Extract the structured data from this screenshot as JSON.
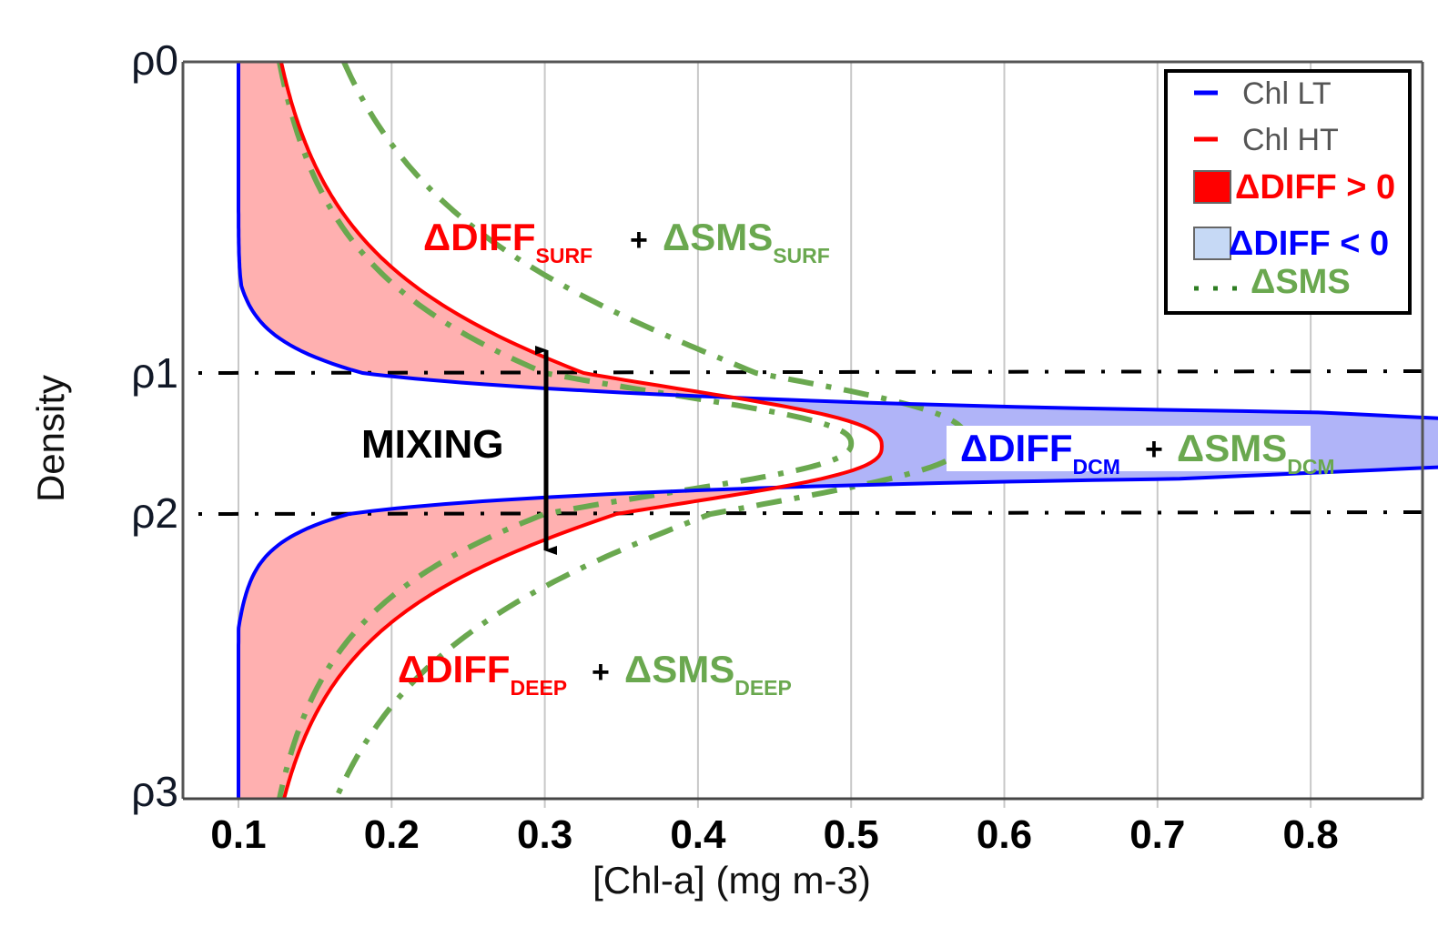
{
  "chart_data": {
    "type": "line",
    "title": "",
    "xlabel": "[Chl-a] (mg m-3)",
    "ylabel": "Density",
    "xlim": [
      0.07,
      0.86
    ],
    "x_ticks": [
      0.1,
      0.2,
      0.3,
      0.4,
      0.5,
      0.6,
      0.7,
      0.8
    ],
    "x_tick_labels": [
      "0.1",
      "0.2",
      "0.3",
      "0.4",
      "0.5",
      "0.6",
      "0.7",
      "0.8"
    ],
    "y_ticks": [
      "ρ0",
      "ρ1",
      "ρ2",
      "ρ3"
    ],
    "y_axis_direction": "downward (ρ0 top, ρ3 bottom)",
    "grid": "vertical lines at x ticks",
    "horizontal_reference_lines": [
      "ρ1",
      "ρ2"
    ],
    "series": [
      {
        "name": "Chl LT",
        "color": "#0000ff",
        "style": "solid",
        "description": "Low-turbulence profile: 0.1 at surface and depth, sharp DCM peak ~0.83 between ρ1 and ρ2",
        "points": [
          {
            "density": "ρ0",
            "chl": 0.1
          },
          {
            "density": 0.5,
            "chl": 0.105
          },
          {
            "density": 0.85,
            "chl": 0.2
          },
          {
            "density": "ρ1",
            "chl": 0.3
          },
          {
            "density": 1.5,
            "chl": 0.83
          },
          {
            "density": "ρ2",
            "chl": 0.42
          },
          {
            "density": 2.1,
            "chl": 0.3
          },
          {
            "density": 2.5,
            "chl": 0.1
          },
          {
            "density": "ρ3",
            "chl": 0.1
          }
        ]
      },
      {
        "name": "Chl HT",
        "color": "#ff0000",
        "style": "solid",
        "description": "High-turbulence profile: broader, lower peak ~0.52 near mid ρ1–ρ2",
        "points": [
          {
            "density": "ρ0",
            "chl": 0.1
          },
          {
            "density": 0.5,
            "chl": 0.2
          },
          {
            "density": "ρ1",
            "chl": 0.36
          },
          {
            "density": 1.5,
            "chl": 0.52
          },
          {
            "density": "ρ2",
            "chl": 0.4
          },
          {
            "density": 2.5,
            "chl": 0.13
          },
          {
            "density": "ρ3",
            "chl": 0.1
          }
        ]
      },
      {
        "name": "ΔSMS",
        "color": "#6aa84f",
        "style": "dash-dot",
        "description": "Two dash-dot green profiles bracketing the HT curve; peaks ~0.50 and ~0.57"
      }
    ],
    "fills": [
      {
        "name": "ΔDIFF > 0",
        "color": "#ff0000",
        "fill": "#ffb0b0",
        "regions": [
          "surface (ρ0–ρ1)",
          "deep (ρ2–ρ3)"
        ]
      },
      {
        "name": "ΔDIFF < 0",
        "color": "#0000ff",
        "fill": "#b0b4f8",
        "regions": [
          "DCM (ρ1–ρ2)"
        ]
      }
    ],
    "legend": {
      "placement": "top-right",
      "entries": [
        {
          "label": "Chl LT",
          "color": "#0000ff",
          "marker": "line"
        },
        {
          "label": "Chl HT",
          "color": "#ff0000",
          "marker": "line"
        },
        {
          "label": "ΔDIFF > 0",
          "color": "#ff0000",
          "marker": "box",
          "box_fill": "#ff0000"
        },
        {
          "label": "ΔDIFF < 0",
          "color": "#0000ff",
          "marker": "box",
          "box_fill": "#c6d9f5"
        },
        {
          "label": "ΔSMS",
          "color": "#6aa84f",
          "marker": "dots"
        }
      ]
    },
    "annotations": [
      {
        "id": "surf",
        "main_red": "ΔDIFF",
        "sub_red": "SURF",
        "plus": "+",
        "main_green": "ΔSMS",
        "sub_green": "SURF"
      },
      {
        "id": "dcm",
        "main_red": "ΔDIFF",
        "sub_red": "DCM",
        "plus": "+",
        "main_green": "ΔSMS",
        "sub_green": "DCM"
      },
      {
        "id": "deep",
        "main_red": "ΔDIFF",
        "sub_red": "DEEP",
        "plus": "+",
        "main_green": "ΔSMS",
        "sub_green": "DEEP"
      },
      {
        "id": "mixing",
        "text": "MIXING",
        "arrow": "double-headed vertical at x=0.3 from ~ρ1 to ~ρ2"
      }
    ]
  },
  "colors": {
    "lt": "#0000ff",
    "ht": "#ff0000",
    "sms": "#6aa84f",
    "diff_pos_fill": "#ffb0b0",
    "diff_neg_fill": "#b0b4f8",
    "legend_box_neg": "#c6d9f5"
  }
}
